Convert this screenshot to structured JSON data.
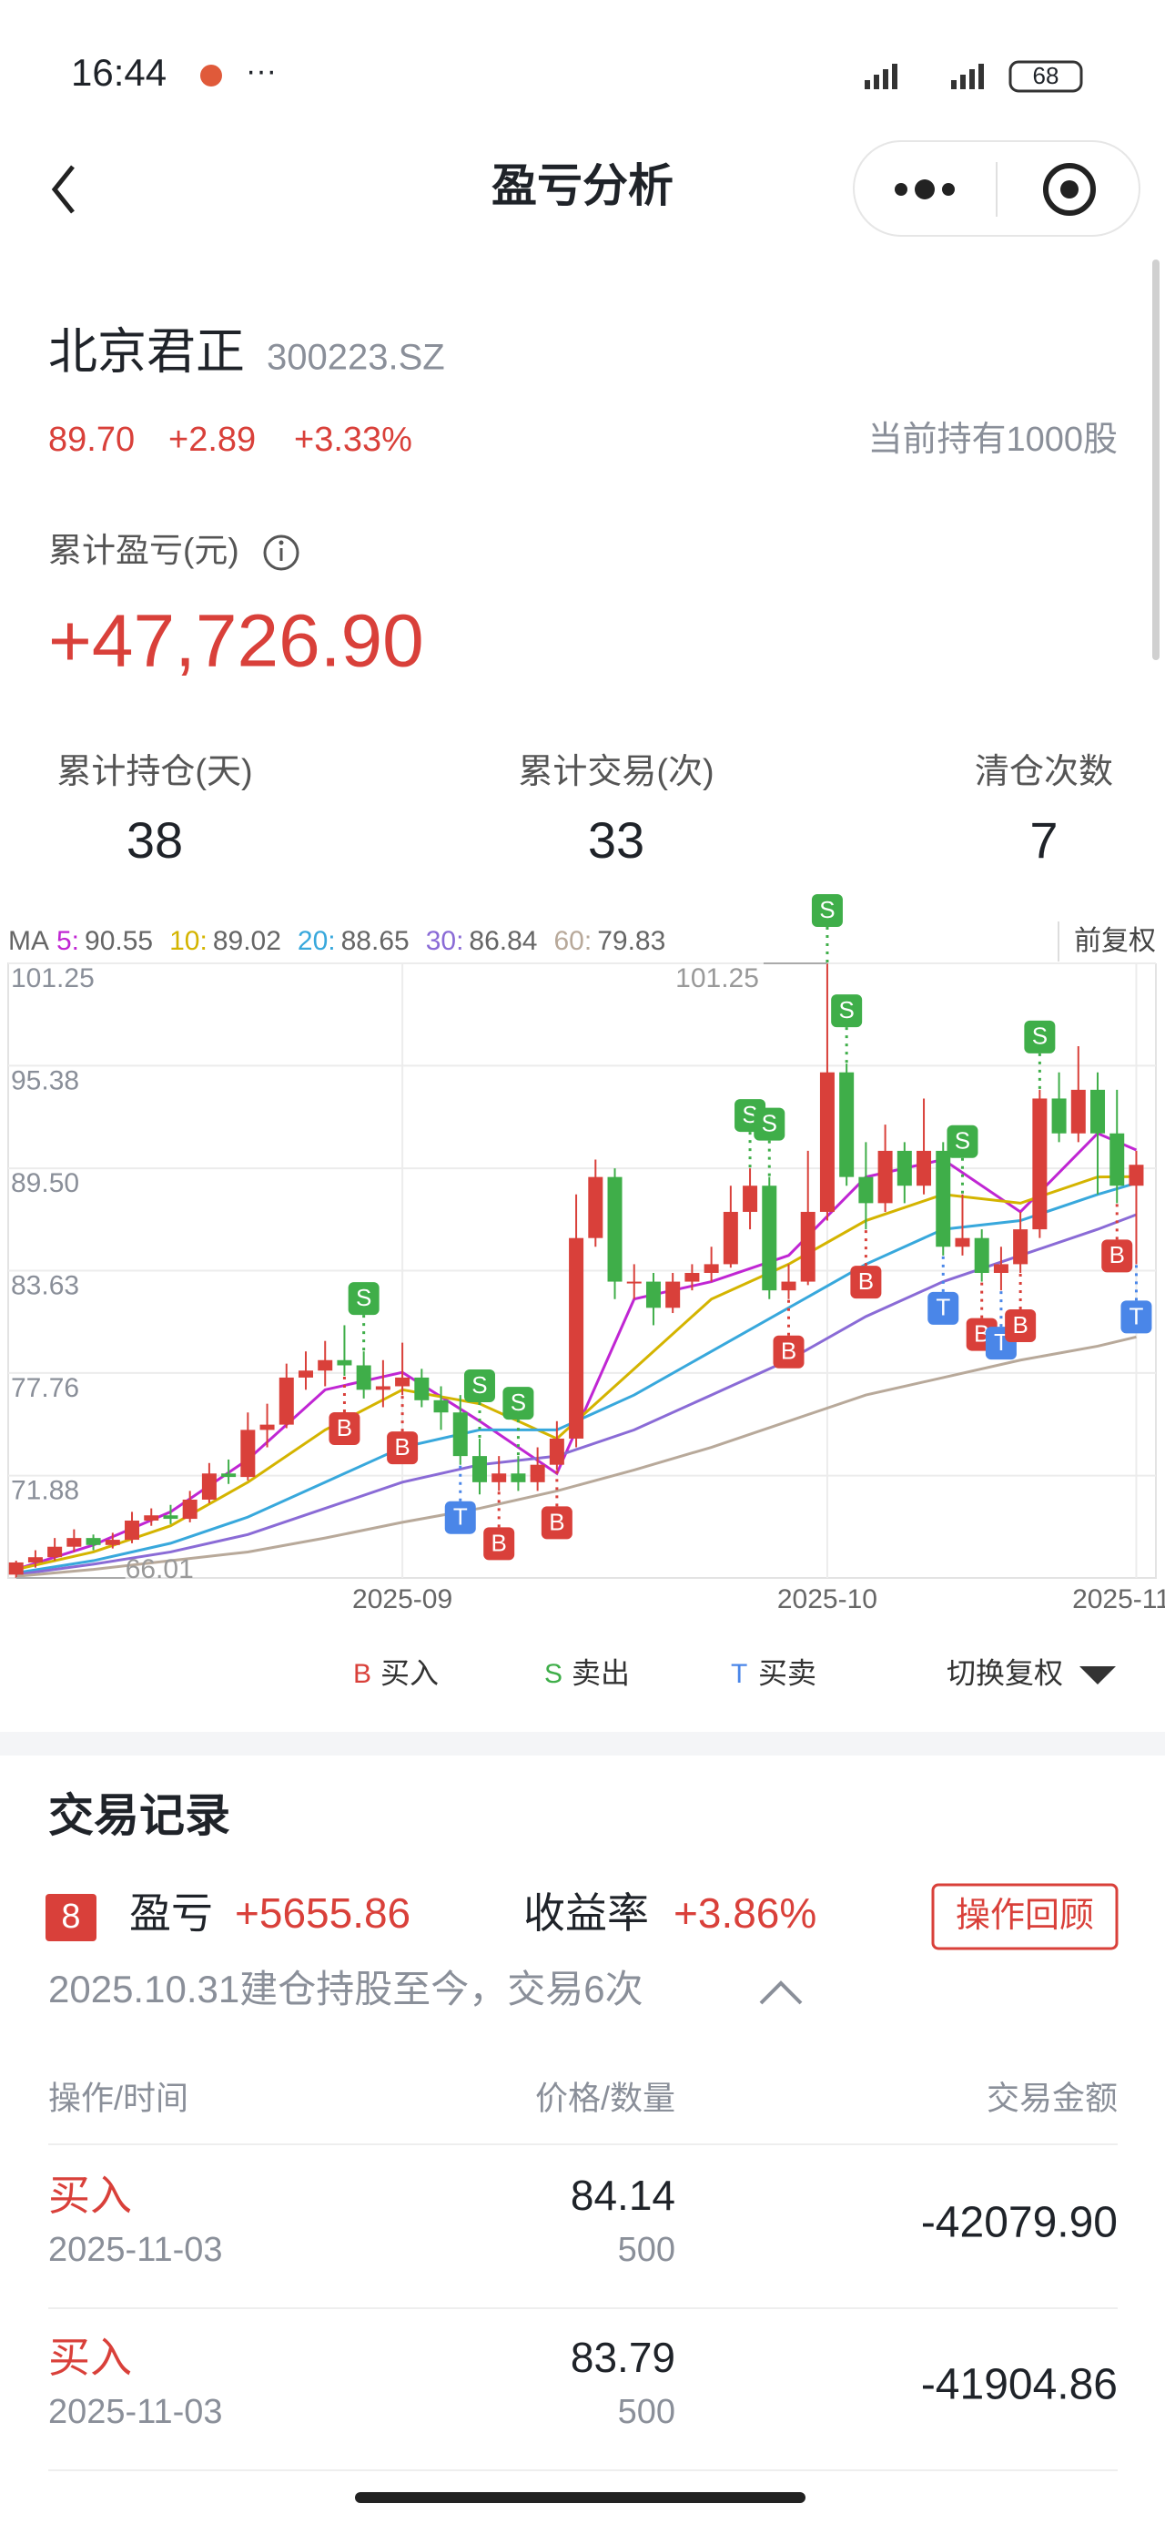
{
  "status_bar": {
    "time": "16:44",
    "battery": "68"
  },
  "nav": {
    "title": "盈亏分析"
  },
  "stock": {
    "name": "北京君正",
    "code": "300223.SZ",
    "price": "89.70",
    "change": "+2.89",
    "change_pct": "+3.33%",
    "holding": "当前持有1000股"
  },
  "pnl": {
    "label": "累计盈亏(元)",
    "value": "+47,726.90"
  },
  "stats": [
    {
      "label": "累计持仓(天)",
      "value": "38"
    },
    {
      "label": "累计交易(次)",
      "value": "33"
    },
    {
      "label": "清仓次数",
      "value": "7"
    }
  ],
  "chart_data": {
    "type": "candlestick",
    "ma_label": "MA",
    "adjust_label": "前复权",
    "categories": [
      null,
      null,
      null,
      null,
      null,
      null,
      null,
      null,
      null,
      null,
      null,
      null,
      null,
      null,
      null,
      null,
      null,
      null,
      null,
      null,
      "2025-09",
      null,
      null,
      null,
      null,
      null,
      null,
      null,
      null,
      null,
      null,
      null,
      null,
      null,
      null,
      null,
      null,
      null,
      null,
      null,
      null,
      null,
      "2025-10",
      null,
      null,
      null,
      null,
      null,
      null,
      null,
      null,
      null,
      null,
      null,
      null,
      null,
      null,
      null,
      "2025-11"
    ],
    "open": [
      66.2,
      66.9,
      67.2,
      67.8,
      68.3,
      67.9,
      68.2,
      69.3,
      69.6,
      69.4,
      70.5,
      72,
      71.8,
      74.5,
      74.8,
      77.5,
      77.9,
      78.5,
      78.2,
      76.8,
      77,
      77.5,
      76.2,
      75.5,
      73,
      71.5,
      72,
      71.5,
      72.5,
      74,
      85.5,
      89,
      83,
      83,
      81.5,
      83,
      83.5,
      84,
      87,
      88.5,
      82.5,
      83,
      87,
      95,
      89,
      87.5,
      90.5,
      88.5,
      90.5,
      85,
      85.5,
      83.5,
      84,
      86,
      93.5,
      91.5,
      94,
      91.5,
      88.5
    ],
    "high": [
      67,
      67.6,
      68.3,
      68.8,
      68.5,
      68.6,
      69.8,
      70,
      70.2,
      71,
      72.6,
      72.8,
      75.5,
      76,
      78.3,
      79,
      79.6,
      80.5,
      79,
      78.5,
      79.5,
      78,
      77,
      76.5,
      74,
      73,
      73,
      73.5,
      75,
      88,
      90,
      89.5,
      84,
      83.5,
      83.5,
      84,
      85,
      88.5,
      89.5,
      89,
      84,
      90.5,
      101.25,
      95.5,
      91,
      92,
      91,
      93.5,
      91,
      88,
      86,
      85,
      87,
      94,
      95,
      96.5,
      95,
      94,
      90.5
    ],
    "low": [
      66.01,
      66.6,
      67,
      67.5,
      67.6,
      67.7,
      68,
      69,
      69.1,
      69.2,
      70.3,
      71.4,
      71.6,
      73.5,
      74.6,
      76.8,
      77,
      77.6,
      76.3,
      75.8,
      76.5,
      75.8,
      74.5,
      72.5,
      70.8,
      71,
      71,
      71,
      72.2,
      73.5,
      85,
      82,
      82,
      80.5,
      81.2,
      82.5,
      83,
      83.8,
      86,
      82,
      82,
      82.8,
      86.5,
      88.5,
      86,
      87,
      87.5,
      88,
      84.5,
      84.5,
      83,
      82.5,
      83.5,
      85.5,
      91,
      91,
      88,
      87.5,
      84
    ],
    "close": [
      66.9,
      67.2,
      67.8,
      68.3,
      67.9,
      68.2,
      69.3,
      69.6,
      69.4,
      70.5,
      72,
      71.8,
      74.5,
      74.8,
      77.5,
      77.9,
      78.5,
      78.2,
      76.8,
      77,
      77.5,
      76.2,
      75.5,
      73,
      71.5,
      72,
      71.5,
      72.5,
      74,
      85.5,
      89,
      83,
      83,
      81.5,
      83,
      83.5,
      84,
      87,
      88.5,
      82.5,
      83,
      87,
      95,
      89,
      87.5,
      90.5,
      88.5,
      90.5,
      85,
      85.5,
      83.5,
      84,
      86,
      93.5,
      91.5,
      94,
      91.5,
      88.5,
      89.7
    ],
    "up_color": "#d9403a",
    "down_color": "#3fae49",
    "ma": [
      {
        "name": "5:",
        "color": "#c026d3",
        "last": 90.55,
        "x": [
          0,
          4,
          8,
          12,
          16,
          20,
          24,
          28,
          32,
          36,
          40,
          44,
          48,
          52,
          56,
          58
        ],
        "values": [
          66.5,
          67.9,
          69.8,
          72.8,
          76.8,
          77.8,
          75,
          72,
          82,
          83,
          84.5,
          89,
          90,
          87,
          91.5,
          90.55
        ]
      },
      {
        "name": "10:",
        "color": "#d4b400",
        "last": 89.02,
        "x": [
          0,
          4,
          8,
          12,
          16,
          20,
          24,
          28,
          32,
          36,
          40,
          44,
          48,
          52,
          56,
          58
        ],
        "values": [
          66.5,
          67.5,
          69,
          71.5,
          74.5,
          76.8,
          76,
          74,
          78,
          82,
          84,
          86.5,
          88,
          87.5,
          89,
          89.02
        ]
      },
      {
        "name": "20:",
        "color": "#38a8dc",
        "last": 88.65,
        "x": [
          0,
          4,
          8,
          12,
          16,
          20,
          24,
          28,
          32,
          36,
          40,
          44,
          48,
          52,
          56,
          58
        ],
        "values": [
          66.3,
          67,
          68,
          69.5,
          71.5,
          73.5,
          74.5,
          74.5,
          76.5,
          79,
          81.5,
          84,
          86,
          86.5,
          88,
          88.65
        ]
      },
      {
        "name": "30:",
        "color": "#8a6bd6",
        "last": 86.84,
        "x": [
          0,
          4,
          8,
          12,
          16,
          20,
          24,
          28,
          32,
          36,
          40,
          44,
          48,
          52,
          56,
          58
        ],
        "values": [
          66.2,
          66.8,
          67.5,
          68.5,
          70,
          71.5,
          72.5,
          73,
          74.5,
          76.5,
          78.5,
          81,
          83,
          84.5,
          86,
          86.84
        ]
      },
      {
        "name": "60:",
        "color": "#b8a99a",
        "last": 79.83,
        "x": [
          0,
          4,
          8,
          12,
          16,
          20,
          24,
          28,
          32,
          36,
          40,
          44,
          48,
          52,
          56,
          58
        ],
        "values": [
          66.1,
          66.5,
          67,
          67.5,
          68.3,
          69.2,
          70,
          71,
          72.2,
          73.5,
          75,
          76.5,
          77.5,
          78.5,
          79.3,
          79.83
        ]
      }
    ],
    "ylim": [
      66.01,
      101.25
    ],
    "yticks": [
      101.25,
      95.38,
      {
        "value": 89.5,
        "label": "89.50"
      },
      83.63,
      77.76,
      71.88
    ],
    "annotations": [
      {
        "text": "101.25",
        "x": 42,
        "y": 101.25
      },
      {
        "text": "66.01",
        "x": 0,
        "y": 66.01
      }
    ],
    "signals": [
      {
        "text": "S",
        "x": 18
      },
      {
        "text": "B",
        "x": 17
      },
      {
        "text": "B",
        "x": 20
      },
      {
        "text": "T",
        "x": 23
      },
      {
        "text": "S",
        "x": 24
      },
      {
        "text": "B",
        "x": 25
      },
      {
        "text": "S",
        "x": 26
      },
      {
        "text": "B",
        "x": 28
      },
      {
        "text": "S",
        "x": 38
      },
      {
        "text": "S",
        "x": 39
      },
      {
        "text": "B",
        "x": 40
      },
      {
        "text": "S",
        "x": 42
      },
      {
        "text": "S",
        "x": 43
      },
      {
        "text": "B",
        "x": 44
      },
      {
        "text": "T",
        "x": 48
      },
      {
        "text": "S",
        "x": 49
      },
      {
        "text": "B",
        "x": 50
      },
      {
        "text": "T",
        "x": 51
      },
      {
        "text": "B",
        "x": 52
      },
      {
        "text": "S",
        "x": 53
      },
      {
        "text": "B",
        "x": 57
      },
      {
        "text": "T",
        "x": 58
      }
    ],
    "legend": [
      {
        "symbol": "B",
        "text": "买入",
        "color": "#d9403a"
      },
      {
        "symbol": "S",
        "text": "卖出",
        "color": "#3fae49"
      },
      {
        "symbol": "T",
        "text": "买卖",
        "color": "#4a86e8"
      }
    ],
    "switch_label": "切换复权"
  },
  "trades": {
    "title": "交易记录",
    "badge": "8",
    "pnl_label": "盈亏",
    "pnl": "+5655.86",
    "rate_label": "收益率",
    "rate": "+3.86%",
    "review": "操作回顾",
    "summary": "2025.10.31建仓持股至今，交易6次",
    "headers": [
      "操作/时间",
      "价格/数量",
      "交易金额"
    ],
    "rows": [
      {
        "action": "买入",
        "date": "2025-11-03",
        "price": "84.14",
        "qty": "500",
        "amount": "-42079.90"
      },
      {
        "action": "买入",
        "date": "2025-11-03",
        "price": "83.79",
        "qty": "500",
        "amount": "-41904.86"
      }
    ]
  }
}
